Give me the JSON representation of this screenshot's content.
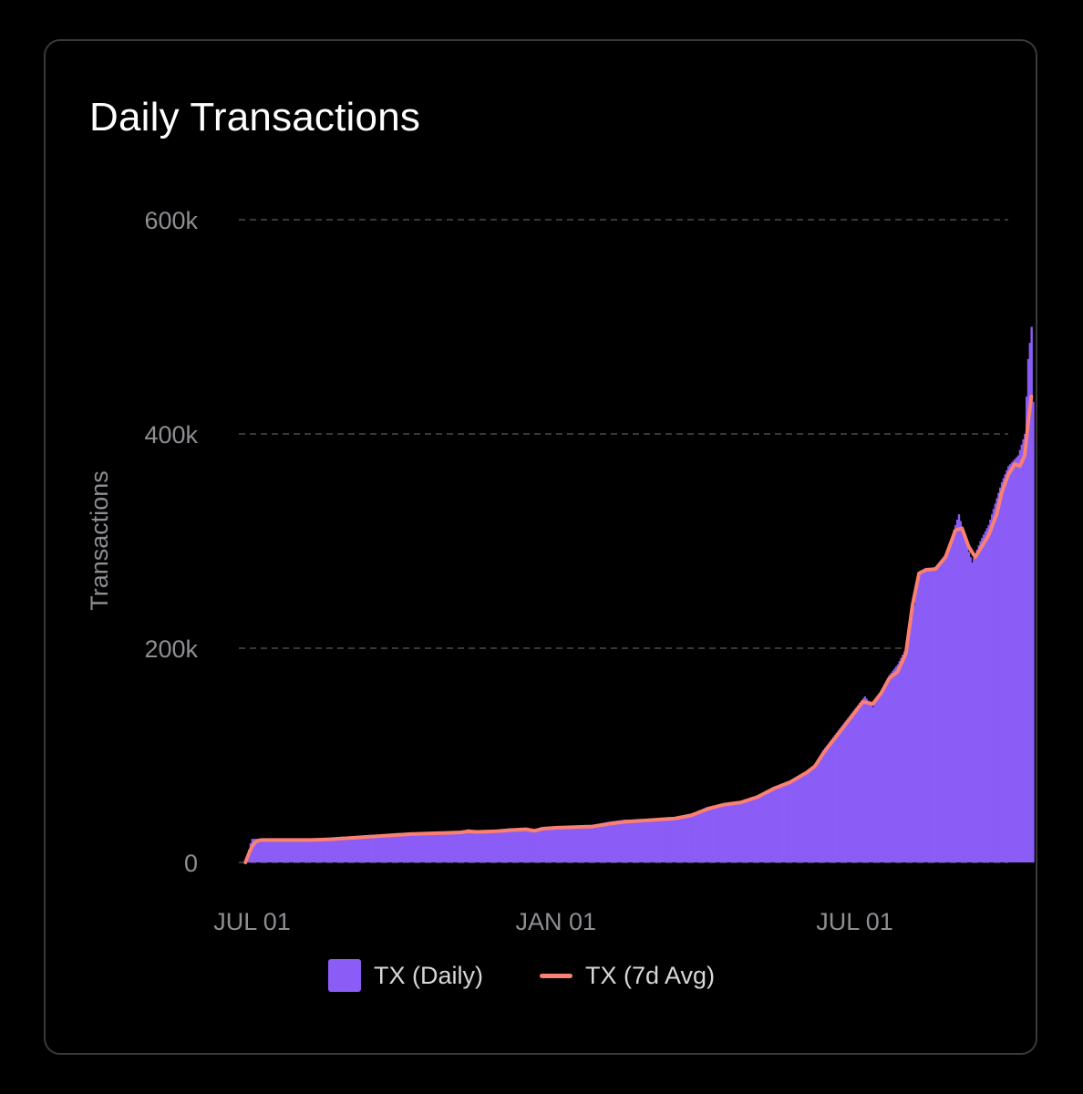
{
  "card": {
    "title": "Daily Transactions"
  },
  "colors": {
    "background": "#000000",
    "card_border": "#3a3a3c",
    "daily_bars": "#8b5cf6",
    "avg_line": "#fa8072",
    "grid": "#4a4a4e",
    "axis_text": "#8e8e93"
  },
  "legend": {
    "daily_label": "TX (Daily)",
    "avg_label": "TX (7d Avg)"
  },
  "chart_data": {
    "type": "area",
    "title": "Daily Transactions",
    "xlabel": "",
    "ylabel": "Transactions",
    "y_ticks": [
      {
        "value": 0,
        "label": "0"
      },
      {
        "value": 200000,
        "label": "200k"
      },
      {
        "value": 400000,
        "label": "400k"
      },
      {
        "value": 600000,
        "label": "600k"
      }
    ],
    "x_ticks": [
      {
        "day": 4,
        "label": "JUL 01"
      },
      {
        "day": 188,
        "label": "JAN 01"
      },
      {
        "day": 369,
        "label": "JUL 01"
      }
    ],
    "ylim": [
      0,
      600000
    ],
    "xlim": [
      -4,
      462
    ],
    "grid": "horizontal dashed",
    "legend_position": "bottom",
    "series": [
      {
        "name": "TX (Daily)",
        "style": "bars",
        "points": [
          [
            0,
            0
          ],
          [
            1,
            5000
          ],
          [
            2,
            12000
          ],
          [
            3,
            18000
          ],
          [
            4,
            22000
          ],
          [
            5,
            22000
          ],
          [
            10,
            22000
          ],
          [
            20,
            22000
          ],
          [
            30,
            22000
          ],
          [
            40,
            22000
          ],
          [
            50,
            23000
          ],
          [
            60,
            24000
          ],
          [
            70,
            25000
          ],
          [
            80,
            26000
          ],
          [
            90,
            27000
          ],
          [
            100,
            28000
          ],
          [
            110,
            28000
          ],
          [
            120,
            28000
          ],
          [
            130,
            29000
          ],
          [
            135,
            31000
          ],
          [
            140,
            29000
          ],
          [
            150,
            30000
          ],
          [
            160,
            32000
          ],
          [
            170,
            32000
          ],
          [
            175,
            30000
          ],
          [
            180,
            33000
          ],
          [
            190,
            34000
          ],
          [
            200,
            34000
          ],
          [
            210,
            35000
          ],
          [
            220,
            38000
          ],
          [
            230,
            40000
          ],
          [
            240,
            40000
          ],
          [
            250,
            41000
          ],
          [
            260,
            42000
          ],
          [
            270,
            45000
          ],
          [
            280,
            52000
          ],
          [
            290,
            55000
          ],
          [
            300,
            57000
          ],
          [
            310,
            62000
          ],
          [
            320,
            70000
          ],
          [
            330,
            75000
          ],
          [
            340,
            85000
          ],
          [
            345,
            90000
          ],
          [
            350,
            105000
          ],
          [
            355,
            115000
          ],
          [
            360,
            125000
          ],
          [
            365,
            135000
          ],
          [
            370,
            145000
          ],
          [
            375,
            155000
          ],
          [
            380,
            145000
          ],
          [
            385,
            160000
          ],
          [
            390,
            175000
          ],
          [
            395,
            185000
          ],
          [
            400,
            200000
          ],
          [
            405,
            240000
          ],
          [
            408,
            270000
          ],
          [
            412,
            275000
          ],
          [
            418,
            275000
          ],
          [
            425,
            290000
          ],
          [
            430,
            315000
          ],
          [
            432,
            325000
          ],
          [
            436,
            300000
          ],
          [
            440,
            280000
          ],
          [
            445,
            300000
          ],
          [
            450,
            315000
          ],
          [
            455,
            340000
          ],
          [
            458,
            355000
          ],
          [
            462,
            370000
          ],
          [
            465,
            375000
          ],
          [
            468,
            380000
          ],
          [
            472,
            400000
          ],
          [
            474,
            470000
          ],
          [
            476,
            500000
          ],
          [
            477,
            430000
          ]
        ]
      },
      {
        "name": "TX (7d Avg)",
        "style": "line",
        "points": [
          [
            0,
            0
          ],
          [
            2,
            8000
          ],
          [
            4,
            15000
          ],
          [
            6,
            19000
          ],
          [
            8,
            20500
          ],
          [
            10,
            21000
          ],
          [
            20,
            21000
          ],
          [
            30,
            21000
          ],
          [
            40,
            21000
          ],
          [
            50,
            21500
          ],
          [
            60,
            22500
          ],
          [
            70,
            23500
          ],
          [
            80,
            24500
          ],
          [
            90,
            25500
          ],
          [
            100,
            26500
          ],
          [
            110,
            27000
          ],
          [
            120,
            27500
          ],
          [
            130,
            28000
          ],
          [
            135,
            29000
          ],
          [
            140,
            28500
          ],
          [
            150,
            29000
          ],
          [
            160,
            30000
          ],
          [
            170,
            31000
          ],
          [
            175,
            29500
          ],
          [
            180,
            31500
          ],
          [
            190,
            32500
          ],
          [
            200,
            33000
          ],
          [
            210,
            33500
          ],
          [
            220,
            36000
          ],
          [
            230,
            38000
          ],
          [
            240,
            39000
          ],
          [
            250,
            40000
          ],
          [
            260,
            41000
          ],
          [
            270,
            44000
          ],
          [
            280,
            50000
          ],
          [
            290,
            54000
          ],
          [
            300,
            56000
          ],
          [
            310,
            61000
          ],
          [
            320,
            69000
          ],
          [
            330,
            75000
          ],
          [
            340,
            84000
          ],
          [
            345,
            90000
          ],
          [
            350,
            102000
          ],
          [
            355,
            112000
          ],
          [
            360,
            122000
          ],
          [
            365,
            132000
          ],
          [
            370,
            142000
          ],
          [
            374,
            150000
          ],
          [
            380,
            148000
          ],
          [
            385,
            158000
          ],
          [
            390,
            172000
          ],
          [
            395,
            178000
          ],
          [
            400,
            195000
          ],
          [
            404,
            240000
          ],
          [
            408,
            270000
          ],
          [
            412,
            273000
          ],
          [
            418,
            274000
          ],
          [
            424,
            285000
          ],
          [
            430,
            310000
          ],
          [
            434,
            312000
          ],
          [
            438,
            295000
          ],
          [
            442,
            285000
          ],
          [
            446,
            295000
          ],
          [
            450,
            305000
          ],
          [
            455,
            325000
          ],
          [
            458,
            345000
          ],
          [
            462,
            362000
          ],
          [
            466,
            372000
          ],
          [
            469,
            370000
          ],
          [
            472,
            380000
          ],
          [
            474,
            410000
          ],
          [
            476,
            435000
          ]
        ]
      }
    ]
  }
}
